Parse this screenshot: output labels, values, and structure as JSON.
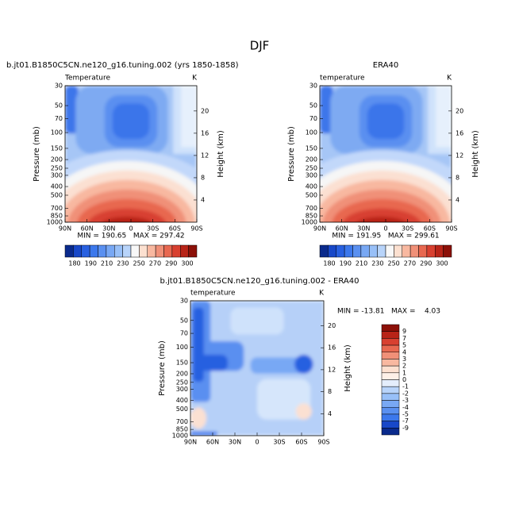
{
  "title": "DJF",
  "panels": [
    {
      "title": "b.jt01.B1850C5CN.ne120_g16.tuning.002 (yrs 1850-1858)",
      "variable": "Temperature",
      "units": "K",
      "y_label": "Pressure (mb)",
      "y2_label": "Height (km)",
      "x_ticks": [
        "90N",
        "60N",
        "30N",
        "0",
        "30S",
        "60S",
        "90S"
      ],
      "y_ticks": [
        "30",
        "50",
        "70",
        "100",
        "150",
        "200",
        "250",
        "300",
        "400",
        "500",
        "700",
        "850",
        "1000"
      ],
      "y2_ticks": [
        "4",
        "8",
        "12",
        "16",
        "20"
      ],
      "min_max": "MIN = 190.65   MAX = 297.42",
      "colorbar": {
        "labels": [
          "180",
          "190",
          "210",
          "230",
          "250",
          "270",
          "290",
          "300"
        ],
        "colors": [
          "#0a2a8c",
          "#1848c8",
          "#2860e0",
          "#3c78ec",
          "#5a90f0",
          "#78a8f4",
          "#98c0f8",
          "#b8d4fa",
          "#f8f8f8",
          "#fce0d0",
          "#f8b8a0",
          "#f09078",
          "#e86850",
          "#d84030",
          "#b82418",
          "#8c1008"
        ]
      }
    },
    {
      "title": "ERA40",
      "variable": "temperature",
      "units": "K",
      "y_label": "Pressure (mb)",
      "y2_label": "Height (km)",
      "x_ticks": [
        "90N",
        "60N",
        "30N",
        "0",
        "30S",
        "60S",
        "90S"
      ],
      "y_ticks": [
        "30",
        "50",
        "70",
        "100",
        "150",
        "200",
        "250",
        "300",
        "400",
        "500",
        "700",
        "850",
        "1000"
      ],
      "y2_ticks": [
        "4",
        "8",
        "12",
        "16",
        "20"
      ],
      "min_max": "MIN = 191.95   MAX = 299.61",
      "colorbar": {
        "labels": [
          "180",
          "190",
          "210",
          "230",
          "250",
          "270",
          "290",
          "300"
        ],
        "colors": [
          "#0a2a8c",
          "#1848c8",
          "#2860e0",
          "#3c78ec",
          "#5a90f0",
          "#78a8f4",
          "#98c0f8",
          "#b8d4fa",
          "#f8f8f8",
          "#fce0d0",
          "#f8b8a0",
          "#f09078",
          "#e86850",
          "#d84030",
          "#b82418",
          "#8c1008"
        ]
      }
    },
    {
      "title": "b.jt01.B1850C5CN.ne120_g16.tuning.002 - ERA40",
      "variable": "temperature",
      "units": "K",
      "y_label": "Pressure (mb)",
      "y2_label": "Height (km)",
      "x_ticks": [
        "90N",
        "60N",
        "30N",
        "0",
        "30S",
        "60S",
        "90S"
      ],
      "y_ticks": [
        "30",
        "50",
        "70",
        "100",
        "150",
        "200",
        "250",
        "300",
        "400",
        "500",
        "700",
        "850",
        "1000"
      ],
      "y2_ticks": [
        "4",
        "8",
        "12",
        "16",
        "20"
      ],
      "min_max": "MIN = -13.81   MAX =    4.03",
      "colorbar": {
        "labels": [
          "9",
          "7",
          "5",
          "4",
          "3",
          "2",
          "1",
          "0",
          "-1",
          "-2",
          "-3",
          "-4",
          "-5",
          "-7",
          "-9"
        ],
        "colors": [
          "#8c1008",
          "#b82418",
          "#d84030",
          "#e86850",
          "#f09078",
          "#f8b8a0",
          "#fce0d0",
          "#fdf0e8",
          "#e4eefc",
          "#b8d4fa",
          "#98c0f8",
          "#78a8f4",
          "#5a90f0",
          "#3c78ec",
          "#1848c8",
          "#0a2a8c"
        ]
      }
    }
  ]
}
